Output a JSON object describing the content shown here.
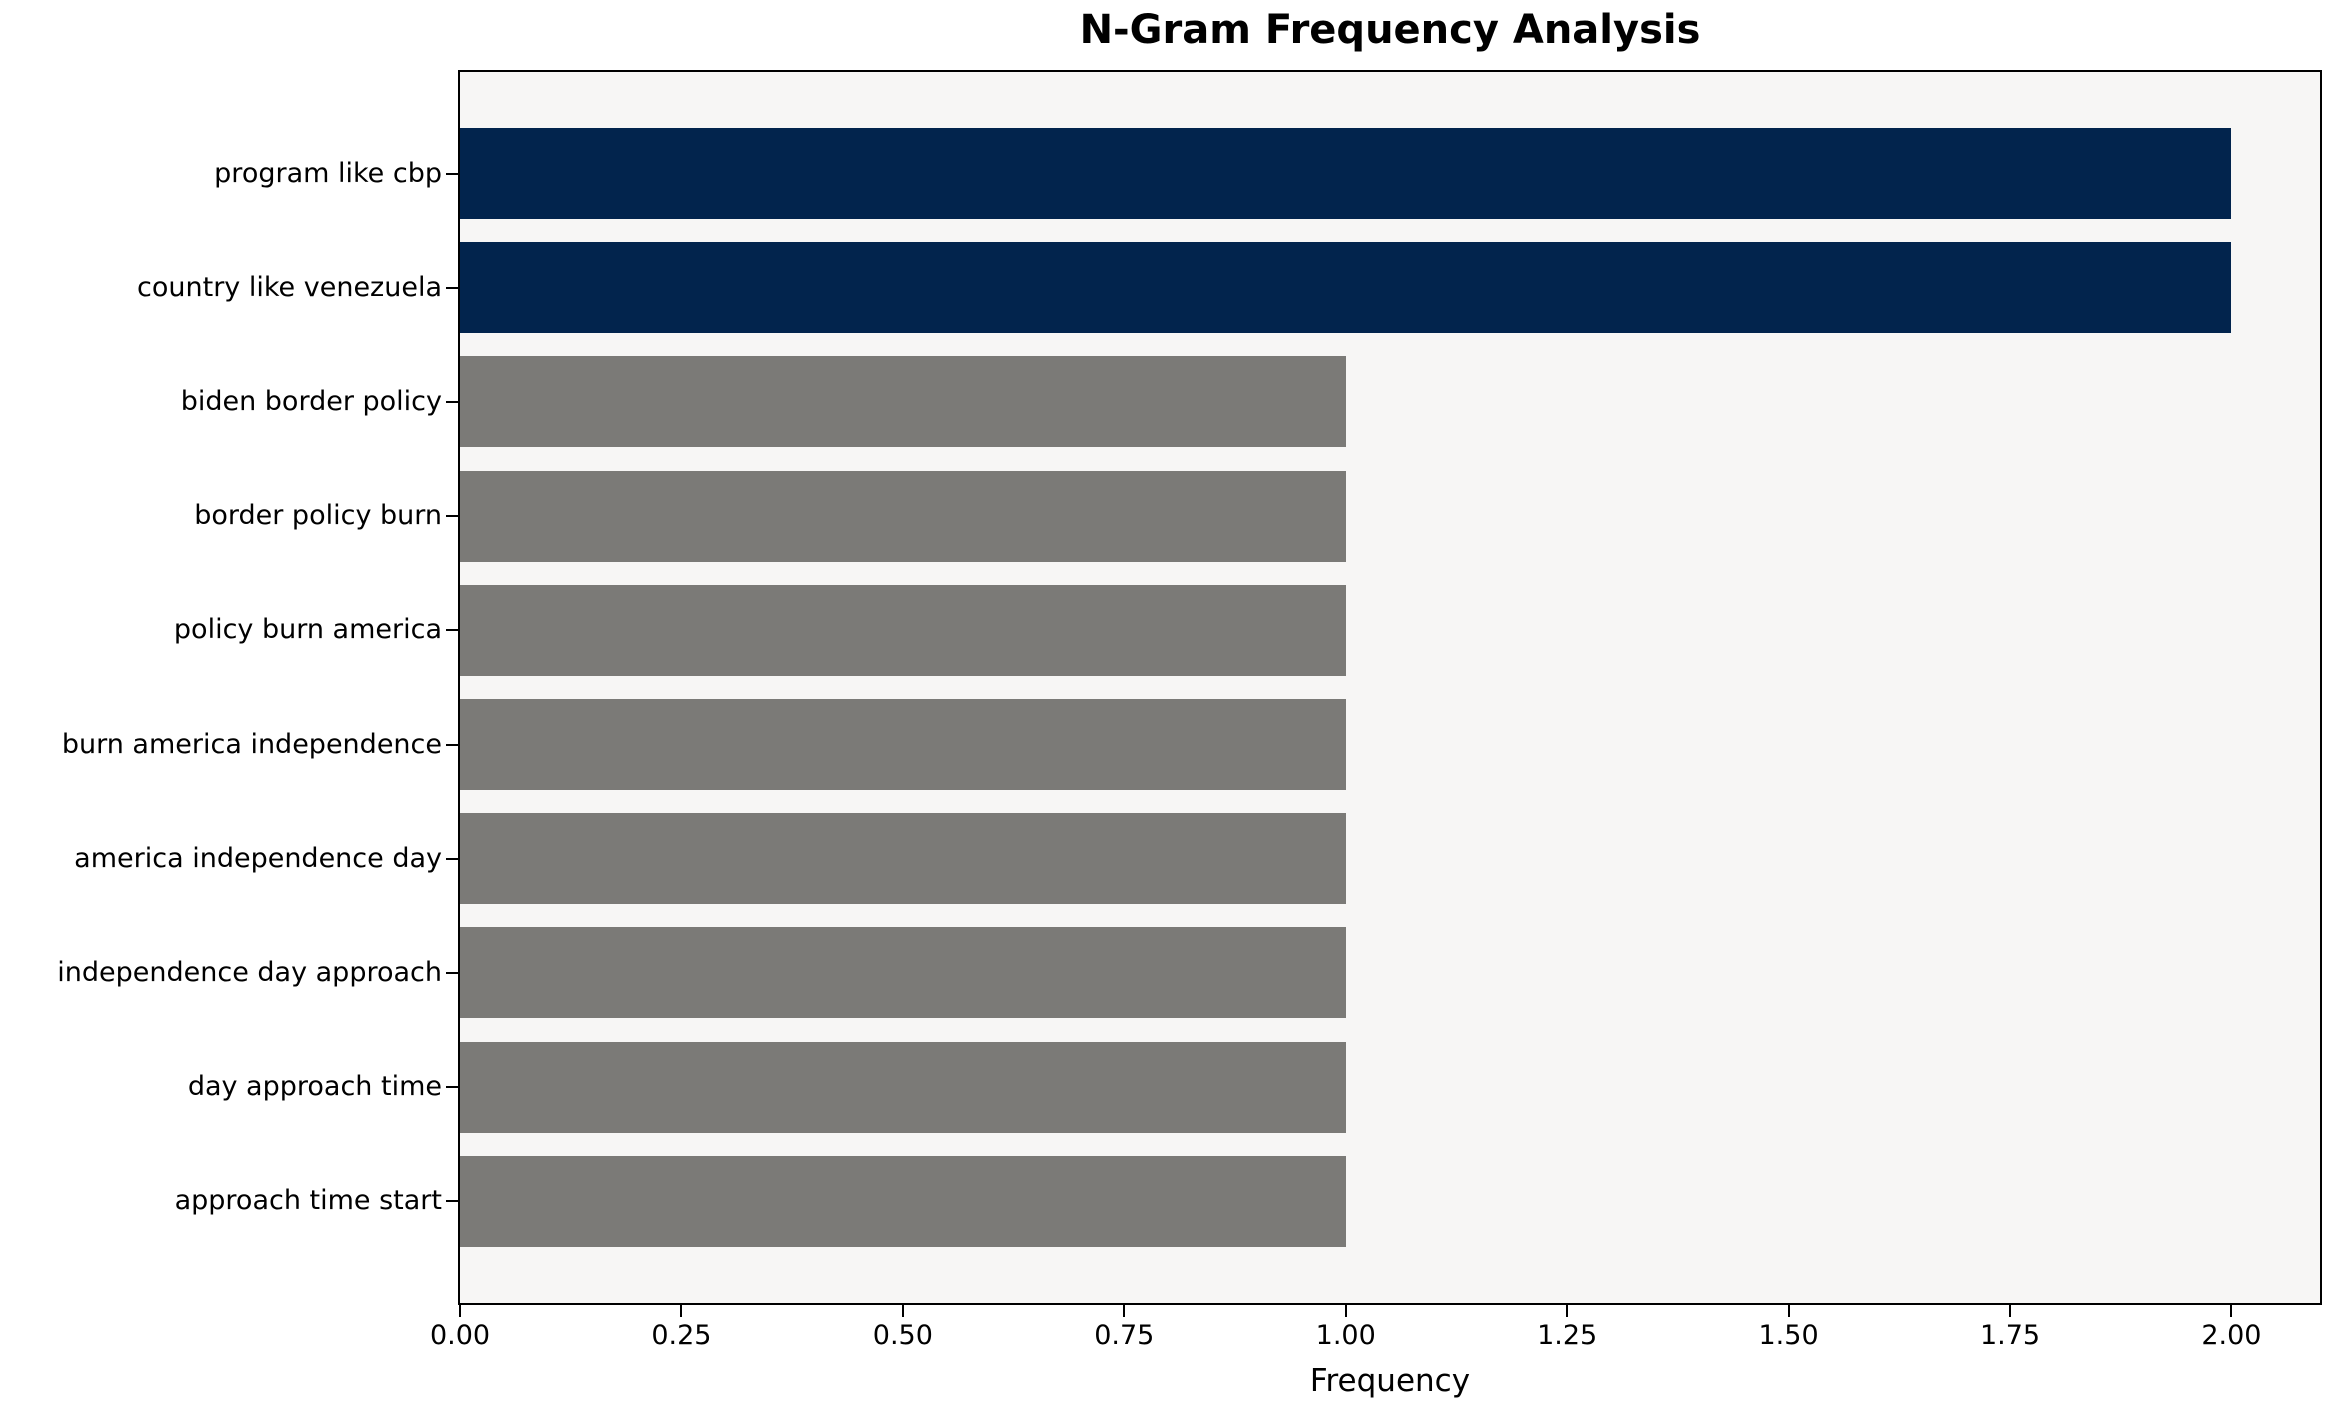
{
  "chart_data": {
    "type": "bar",
    "orientation": "horizontal",
    "title": "N-Gram Frequency Analysis",
    "xlabel": "Frequency",
    "ylabel": "",
    "categories": [
      "program like cbp",
      "country like venezuela",
      "biden border policy",
      "border policy burn",
      "policy burn america",
      "burn america independence",
      "america independence day",
      "independence day approach",
      "day approach time",
      "approach time start"
    ],
    "values": [
      2,
      2,
      1,
      1,
      1,
      1,
      1,
      1,
      1,
      1
    ],
    "bar_colors": [
      "#02244d",
      "#02244d",
      "#7b7a77",
      "#7b7a77",
      "#7b7a77",
      "#7b7a77",
      "#7b7a77",
      "#7b7a77",
      "#7b7a77",
      "#7b7a77"
    ],
    "xlim": [
      0,
      2.1
    ],
    "xticks": [
      0,
      0.25,
      0.5,
      0.75,
      1.0,
      1.25,
      1.5,
      1.75,
      2.0
    ],
    "xtick_labels": [
      "0.00",
      "0.25",
      "0.50",
      "0.75",
      "1.00",
      "1.25",
      "1.50",
      "1.75",
      "2.00"
    ],
    "grid": false,
    "legend": null,
    "colors": {
      "highlight_bar": "#02244d",
      "default_bar": "#7b7a77",
      "plot_background": "#f7f6f5",
      "figure_background": "#ffffff",
      "axis": "#000000",
      "text": "#000000"
    }
  }
}
